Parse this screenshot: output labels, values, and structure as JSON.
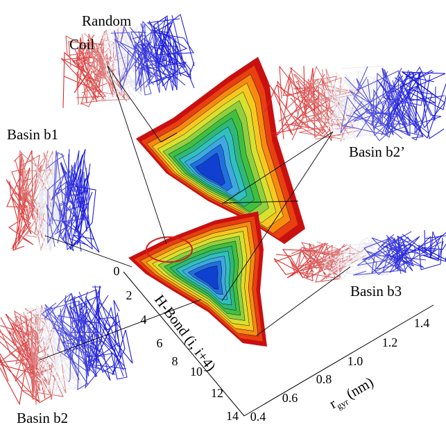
{
  "labels": {
    "random_coil": [
      "Random",
      "Coil"
    ],
    "basin_b1": "Basin b1",
    "basin_b2_prime": "Basin b2’",
    "basin_b3": "Basin b3",
    "basin_b2": "Basin b2"
  },
  "axes": {
    "h_bond": {
      "title": "H-Bond (i, i+4)",
      "ticks": [
        "0",
        "2",
        "4",
        "6",
        "8",
        "10",
        "12",
        "14"
      ]
    },
    "r_gyr": {
      "title_main": "r",
      "title_sub": "gyr",
      "title_unit": "(nm)",
      "ticks": [
        "0.4",
        "0.6",
        "0.8",
        "1.0",
        "1.2",
        "1.4"
      ]
    }
  }
}
